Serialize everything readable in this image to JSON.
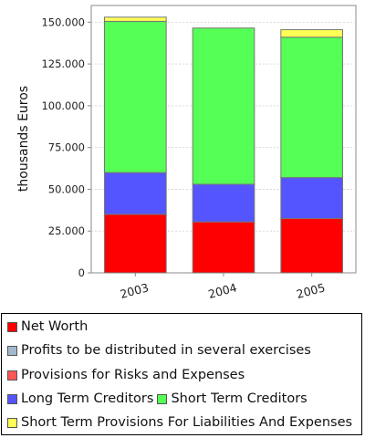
{
  "chart_data": {
    "type": "bar",
    "stacked": true,
    "categories": [
      "2003",
      "2004",
      "2005"
    ],
    "ylabel": "thousands Euros",
    "xlabel": "",
    "ylim": [
      0,
      160000
    ],
    "yticks": [
      0,
      25000,
      50000,
      75000,
      100000,
      125000,
      150000
    ],
    "ytick_labels": [
      "0",
      "25.000",
      "50.000",
      "75.000",
      "100.000",
      "125.000",
      "150.000"
    ],
    "grid": true,
    "legend_position": "bottom",
    "series": [
      {
        "name": "Net Worth",
        "color": "#ff0000",
        "values": [
          35000,
          30500,
          32500
        ]
      },
      {
        "name": "Profits to be distributed in several exercises",
        "color": "#a3b8cc",
        "values": [
          0,
          0,
          0
        ]
      },
      {
        "name": "Provisions for Risks and Expenses",
        "color": "#ff5555",
        "values": [
          0,
          0,
          0
        ]
      },
      {
        "name": "Long Term Creditors",
        "color": "#5555ff",
        "values": [
          25000,
          22500,
          24500
        ]
      },
      {
        "name": "Short Term Creditors",
        "color": "#55ff55",
        "values": [
          90500,
          93500,
          84000
        ]
      },
      {
        "name": "Short Term Provisions For Liabilities And Expenses",
        "color": "#ffff55",
        "values": [
          2500,
          0,
          4500
        ]
      }
    ]
  }
}
